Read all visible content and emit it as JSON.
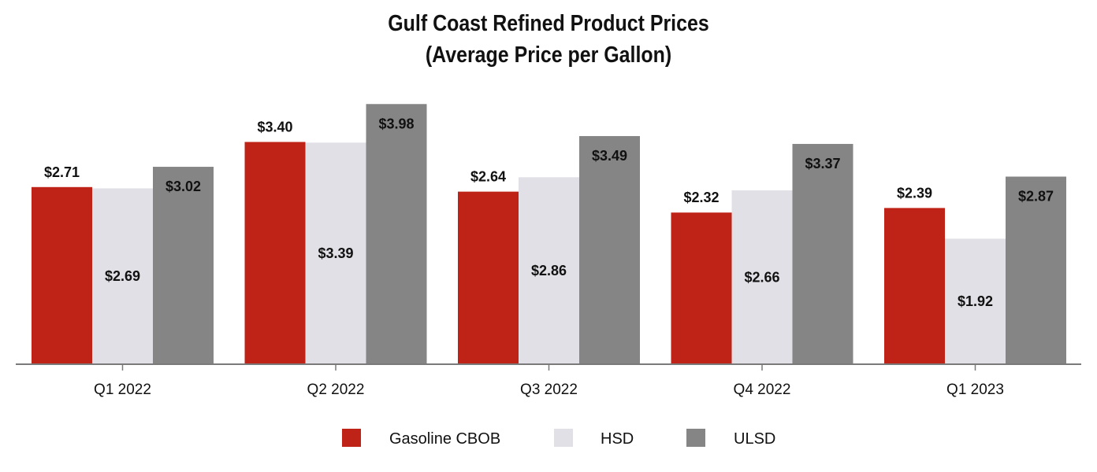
{
  "chart_data": {
    "type": "bar",
    "title": "Gulf Coast Refined Product Prices",
    "subtitle": "(Average Price per Gallon)",
    "categories": [
      "Q1 2022",
      "Q2 2022",
      "Q3 2022",
      "Q4 2022",
      "Q1 2023"
    ],
    "series": [
      {
        "name": "Gasoline CBOB",
        "color": "#bf2216",
        "values": [
          2.71,
          3.4,
          2.64,
          2.32,
          2.39
        ],
        "labels": [
          "$2.71",
          "$3.40",
          "$2.64",
          "$2.32",
          "$2.39"
        ],
        "label_position": "above"
      },
      {
        "name": "HSD",
        "color": "#e0e0e6",
        "values": [
          2.69,
          3.39,
          2.86,
          2.66,
          1.92
        ],
        "labels": [
          "$2.69",
          "$3.39",
          "$2.86",
          "$2.66",
          "$1.92"
        ],
        "label_position": "inside-middle"
      },
      {
        "name": "ULSD",
        "color": "#858585",
        "values": [
          3.02,
          3.98,
          3.49,
          3.37,
          2.87
        ],
        "labels": [
          "$3.02",
          "$3.98",
          "$3.49",
          "$3.37",
          "$2.87"
        ],
        "label_position": "inside-top"
      }
    ],
    "xlabel": "",
    "ylabel": "",
    "ylim": [
      0,
      4.0
    ],
    "y_axis_visible": false,
    "grid": false,
    "legend": "bottom-center"
  }
}
